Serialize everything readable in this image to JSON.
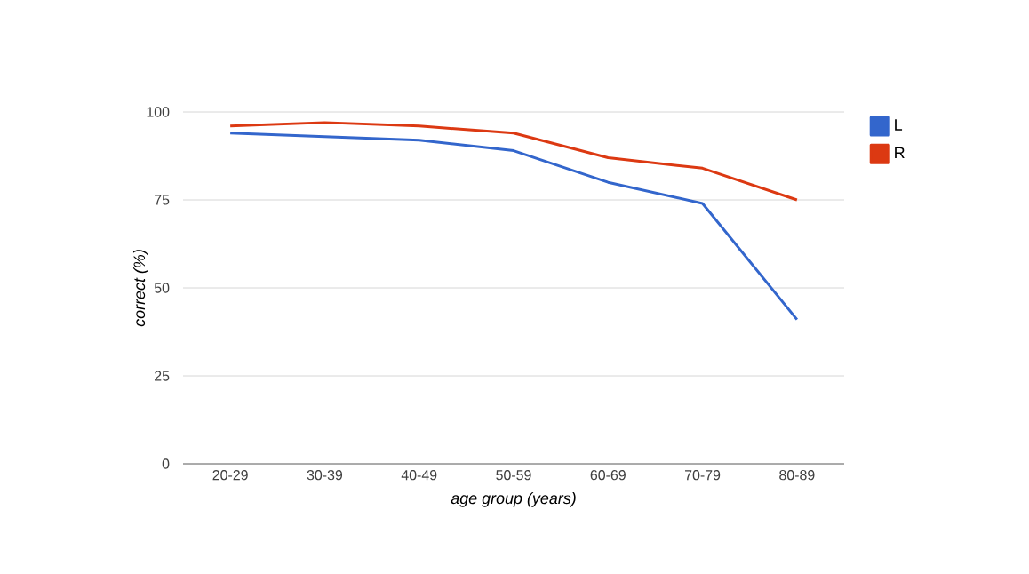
{
  "chart_data": {
    "type": "line",
    "xlabel": "age group (years)",
    "ylabel": "correct (%)",
    "categories": [
      "20-29",
      "30-39",
      "40-49",
      "50-59",
      "60-69",
      "70-79",
      "80-89"
    ],
    "series": [
      {
        "name": "L",
        "color": "#3366cc",
        "values": [
          94,
          93,
          92,
          89,
          80,
          74,
          41
        ]
      },
      {
        "name": "R",
        "color": "#dc3912",
        "values": [
          96,
          97,
          96,
          94,
          87,
          84,
          75
        ]
      }
    ],
    "ylim": [
      0,
      100
    ],
    "yticks": [
      0,
      25,
      50,
      75,
      100
    ],
    "grid": "y",
    "legend": "top right",
    "marker": "none",
    "line_style": "solid"
  }
}
